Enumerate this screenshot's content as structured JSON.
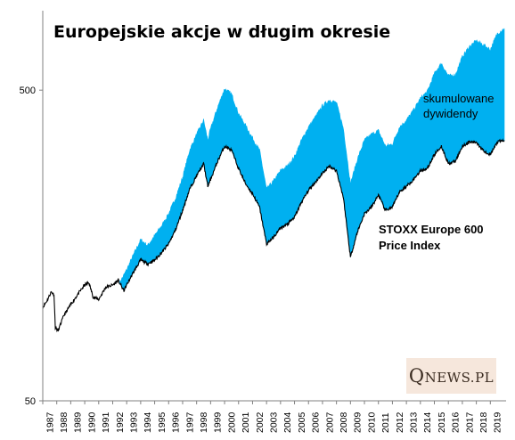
{
  "chart_data": {
    "type": "area",
    "title": "Europejskie akcje w długim okresie",
    "xlabel": "",
    "ylabel": "",
    "yscale": "log",
    "ylim": [
      50,
      800
    ],
    "xlim": [
      1987.0,
      2020.0
    ],
    "yticks": [
      {
        "value": 500,
        "label": "500"
      },
      {
        "value": 50,
        "label": "50"
      }
    ],
    "xticks": [
      "1987",
      "1988",
      "1989",
      "1990",
      "1991",
      "1992",
      "1993",
      "1994",
      "1995",
      "1996",
      "1997",
      "1998",
      "1999",
      "2000",
      "2001",
      "2002",
      "2003",
      "2004",
      "2005",
      "2006",
      "2007",
      "2008",
      "2009",
      "2010",
      "2011",
      "2012",
      "2013",
      "2014",
      "2015",
      "2016",
      "2017",
      "2018",
      "2019"
    ],
    "grid": false,
    "legend": "none",
    "colors": {
      "total_return_fill": "#00b0f0",
      "price_line": "#000000",
      "axis": "#808080"
    },
    "series": [
      {
        "name": "skumulowane dywidendy",
        "role": "total_return",
        "x": [
          1992.5,
          1993.0,
          1993.5,
          1994.0,
          1994.5,
          1995.0,
          1995.5,
          1996.0,
          1996.5,
          1997.0,
          1997.5,
          1998.0,
          1998.5,
          1998.8,
          1999.0,
          1999.5,
          2000.0,
          2000.5,
          2001.0,
          2001.5,
          2002.0,
          2002.5,
          2003.0,
          2003.5,
          2004.0,
          2004.5,
          2005.0,
          2005.5,
          2006.0,
          2006.5,
          2007.0,
          2007.5,
          2008.0,
          2008.5,
          2009.0,
          2009.5,
          2010.0,
          2010.5,
          2011.0,
          2011.5,
          2012.0,
          2012.5,
          2013.0,
          2013.5,
          2014.0,
          2014.5,
          2015.0,
          2015.5,
          2016.0,
          2016.5,
          2017.0,
          2017.5,
          2018.0,
          2018.5,
          2019.0,
          2019.5,
          2020.0
        ],
        "values": [
          120,
          132,
          148,
          165,
          158,
          170,
          183,
          200,
          225,
          262,
          320,
          360,
          400,
          345,
          375,
          440,
          505,
          485,
          420,
          385,
          350,
          320,
          240,
          255,
          275,
          285,
          305,
          345,
          380,
          410,
          445,
          465,
          455,
          375,
          250,
          300,
          345,
          360,
          370,
          330,
          335,
          380,
          400,
          430,
          470,
          495,
          565,
          610,
          555,
          560,
          640,
          690,
          720,
          700,
          675,
          760,
          790
        ]
      },
      {
        "name": "STOXX Europe 600 Price Index",
        "role": "price",
        "x": [
          1987.0,
          1987.3,
          1987.6,
          1987.8,
          1987.9,
          1988.1,
          1988.5,
          1989.0,
          1989.5,
          1990.0,
          1990.3,
          1990.6,
          1991.0,
          1991.5,
          1992.0,
          1992.4,
          1992.8,
          1993.0,
          1993.5,
          1994.0,
          1994.5,
          1995.0,
          1995.5,
          1996.0,
          1996.5,
          1997.0,
          1997.5,
          1998.0,
          1998.5,
          1998.8,
          1999.0,
          1999.5,
          2000.0,
          2000.5,
          2001.0,
          2001.5,
          2002.0,
          2002.5,
          2003.0,
          2003.5,
          2004.0,
          2004.5,
          2005.0,
          2005.5,
          2006.0,
          2006.5,
          2007.0,
          2007.5,
          2008.0,
          2008.5,
          2009.0,
          2009.5,
          2010.0,
          2010.5,
          2011.0,
          2011.5,
          2012.0,
          2012.5,
          2013.0,
          2013.5,
          2014.0,
          2014.5,
          2015.0,
          2015.5,
          2016.0,
          2016.5,
          2017.0,
          2017.5,
          2018.0,
          2018.5,
          2019.0,
          2019.5,
          2020.0
        ],
        "values": [
          100,
          105,
          112,
          110,
          86,
          84,
          94,
          102,
          110,
          118,
          120,
          108,
          106,
          116,
          118,
          122,
          113,
          118,
          130,
          142,
          138,
          142,
          150,
          160,
          178,
          205,
          240,
          265,
          290,
          245,
          258,
          295,
          330,
          320,
          280,
          250,
          232,
          210,
          160,
          168,
          180,
          185,
          195,
          218,
          238,
          253,
          270,
          285,
          275,
          225,
          145,
          175,
          200,
          210,
          230,
          205,
          210,
          235,
          245,
          258,
          275,
          280,
          310,
          330,
          290,
          295,
          330,
          340,
          340,
          320,
          310,
          340,
          345
        ]
      }
    ],
    "annotations": [
      {
        "lines": [
          "skumulowane",
          "dywidendy"
        ],
        "style": "normal"
      },
      {
        "lines": [
          "STOXX Europe 600",
          "Price Index"
        ],
        "style": "bold"
      }
    ]
  },
  "watermark": {
    "q": "Q",
    "rest": "NEWS.PL"
  }
}
